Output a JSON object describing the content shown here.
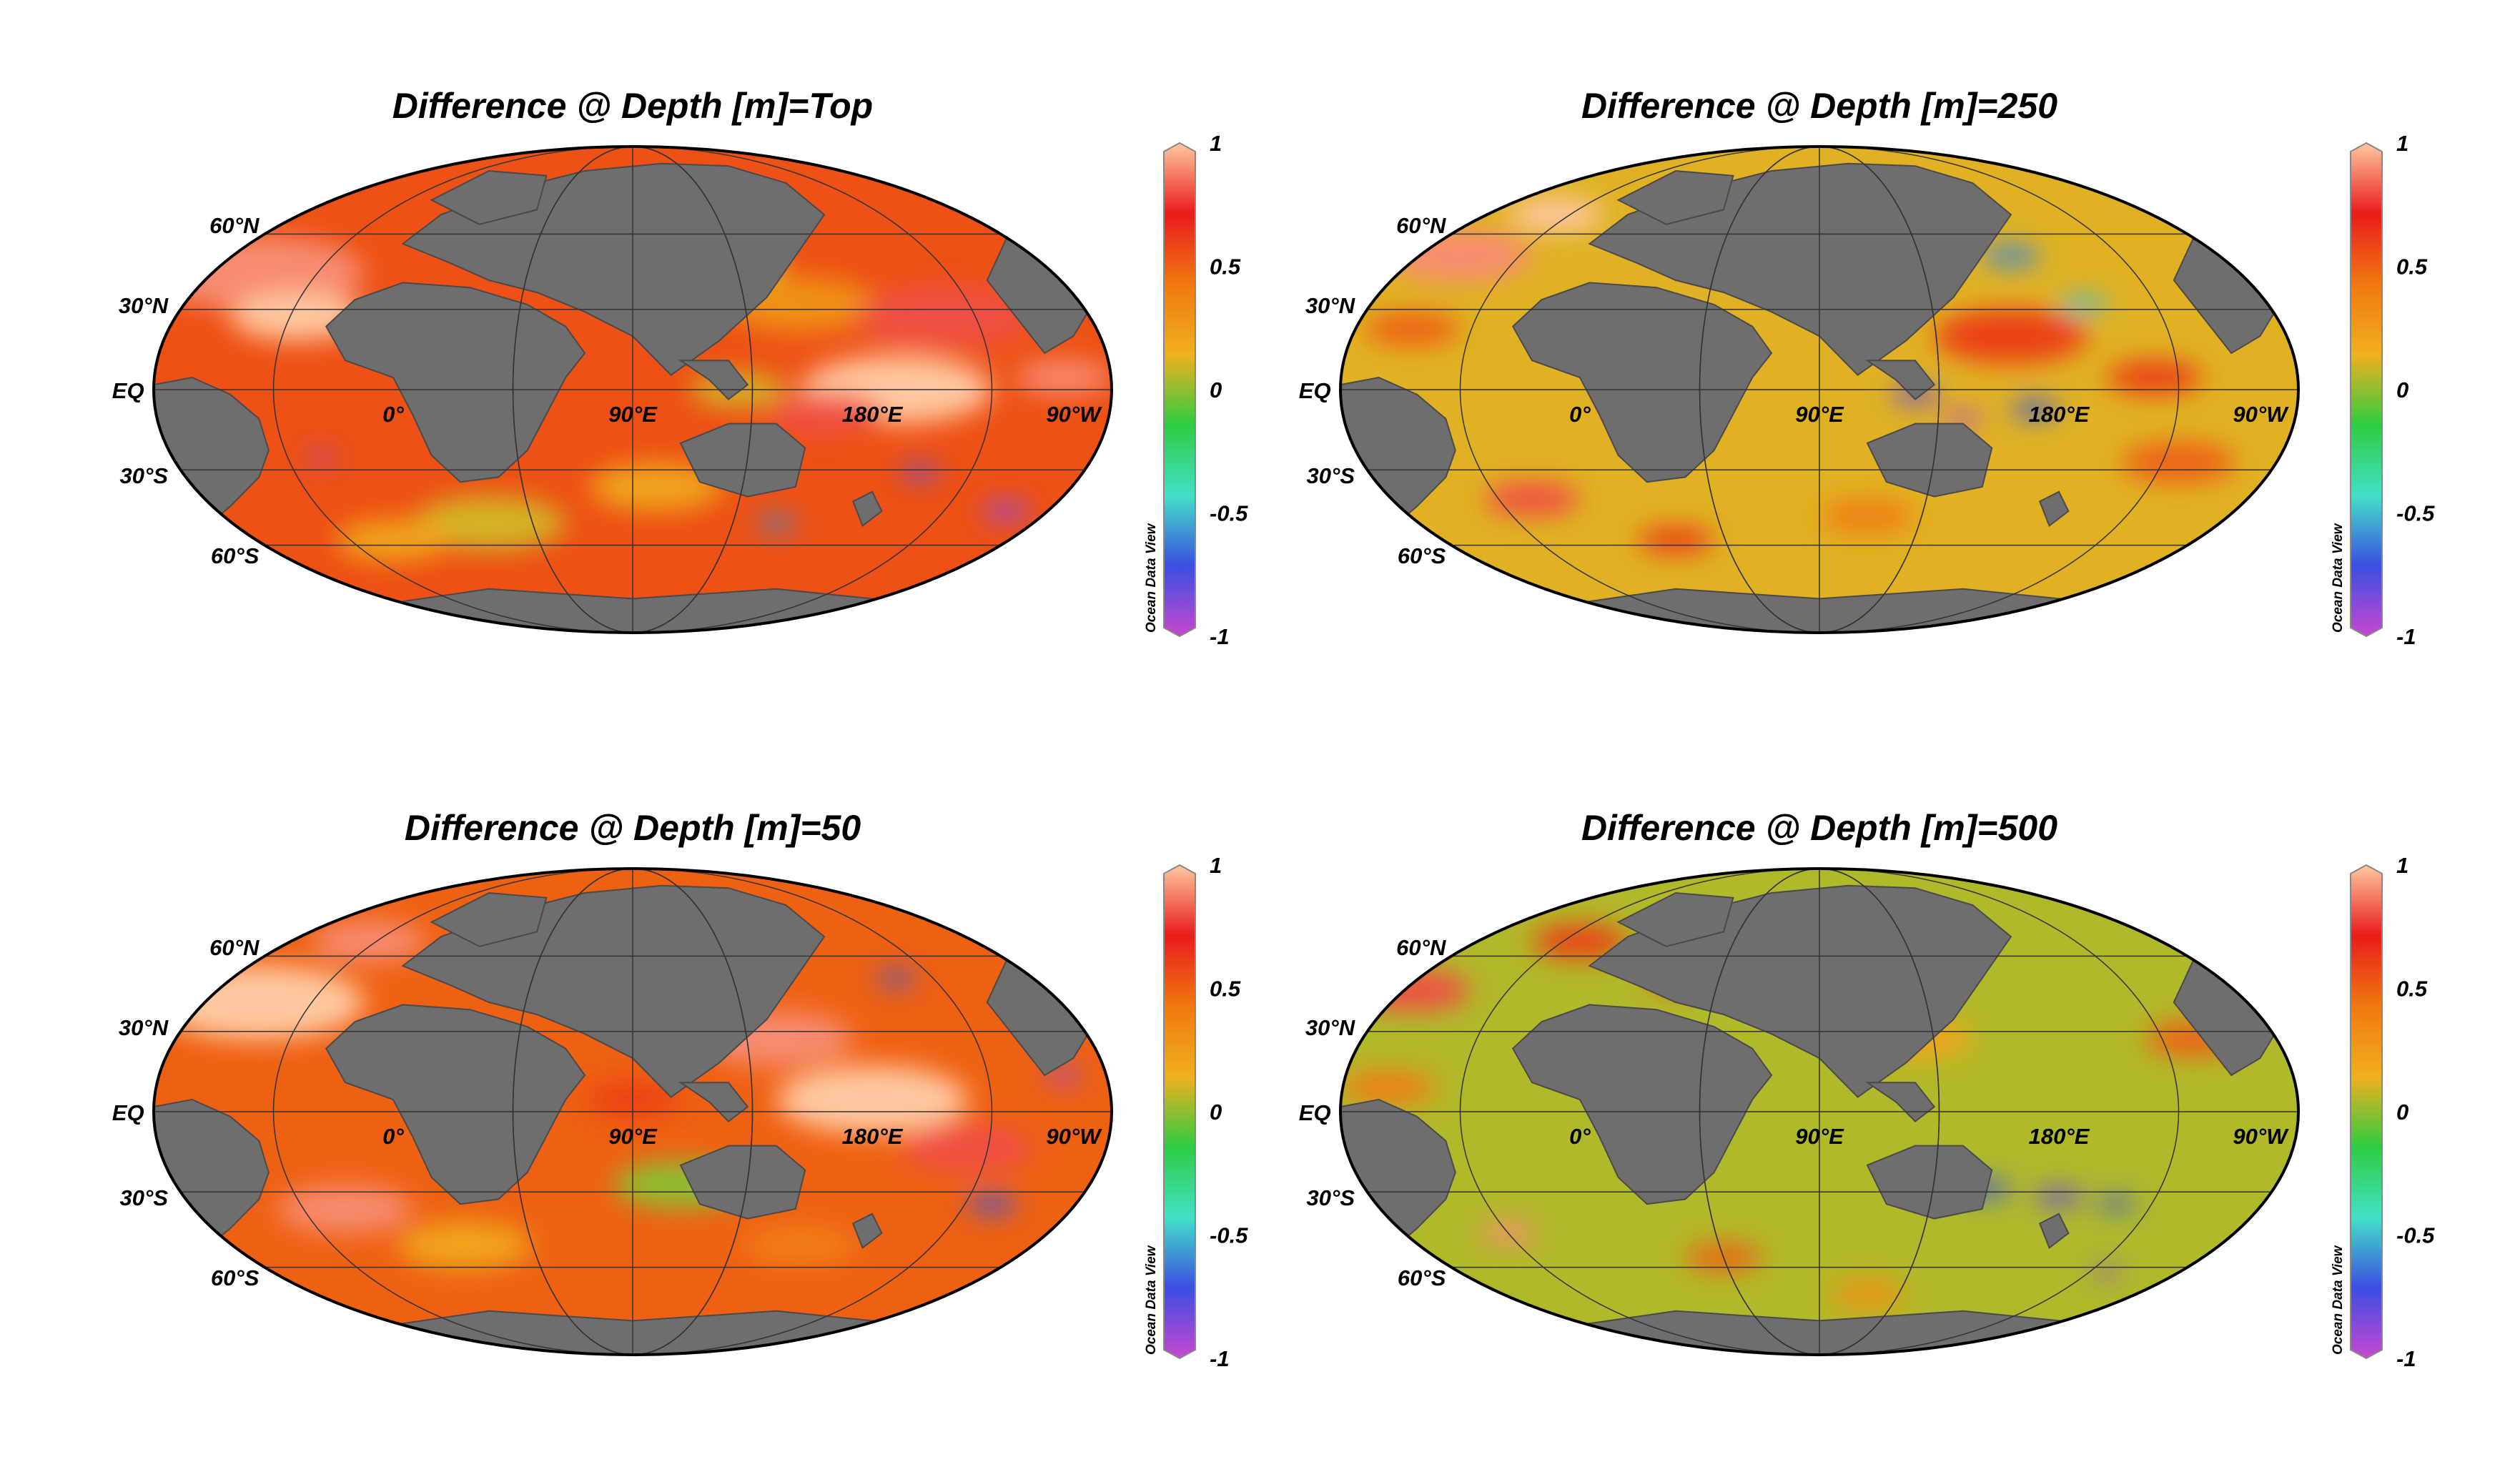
{
  "figure": {
    "panels": [
      {
        "title": "Difference @ Depth [m]=Top",
        "depth": "Top"
      },
      {
        "title": "Difference @ Depth [m]=250",
        "depth": "250"
      },
      {
        "title": "Difference @ Depth [m]=50",
        "depth": "50"
      },
      {
        "title": "Difference @ Depth [m]=500",
        "depth": "500"
      }
    ],
    "lat_labels": [
      "60°N",
      "30°N",
      "EQ",
      "30°S",
      "60°S"
    ],
    "lon_labels": [
      "0°",
      "90°E",
      "180°E",
      "90°W"
    ],
    "colorbar": {
      "ticks": [
        "1",
        "0.5",
        "0",
        "-0.5",
        "-1"
      ],
      "range": [
        -1,
        1
      ],
      "credit": "Ocean Data View",
      "stops": [
        "#c847d0",
        "#3a4fe0",
        "#44e0c8",
        "#2ecc40",
        "#f0b020",
        "#f07810",
        "#e81c1c",
        "#ffc8a0"
      ]
    },
    "colors": {
      "land": "#6e6e6e",
      "ice_land": "#c0c0c0",
      "map_outline": "#000000"
    }
  }
}
